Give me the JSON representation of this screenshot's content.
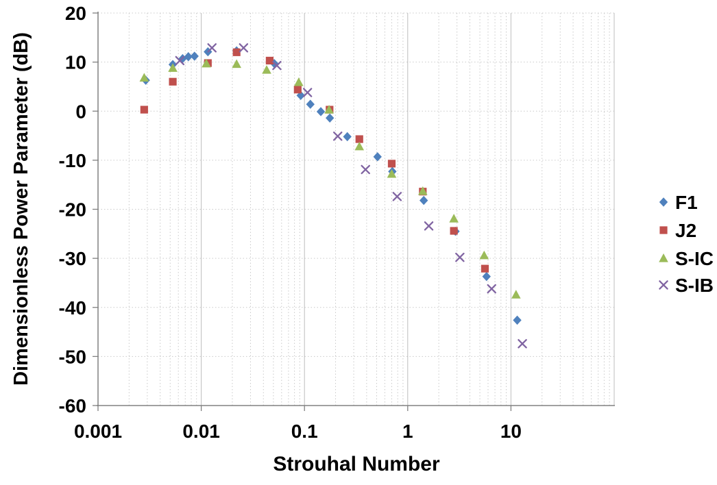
{
  "chart_data": {
    "type": "scatter",
    "title": "",
    "xlabel": "Strouhal Number",
    "ylabel": "Dimensionless Power Parameter (dB)",
    "x_scale": "log",
    "xlim": [
      0.001,
      100
    ],
    "ylim": [
      -60,
      20
    ],
    "x_major_ticks": [
      0.001,
      0.01,
      0.1,
      1,
      10
    ],
    "x_tick_labels": [
      "0.001",
      "0.01",
      "0.1",
      "1",
      "10"
    ],
    "y_major_ticks": [
      20,
      10,
      0,
      -10,
      -20,
      -30,
      -40,
      -50,
      -60
    ],
    "y_tick_labels": [
      "20",
      "10",
      "0",
      "-10",
      "-20",
      "-30",
      "-40",
      "-50",
      "-60"
    ],
    "grid": {
      "x_minor": "dotted",
      "x_major": "solid",
      "y_major": "dotted"
    },
    "legend_position": "right-outside",
    "series": [
      {
        "name": "F1",
        "marker": "diamond",
        "color": "#4F81BD",
        "points": [
          [
            0.0029,
            6.3
          ],
          [
            0.0053,
            9.5
          ],
          [
            0.0066,
            10.7
          ],
          [
            0.0075,
            11.1
          ],
          [
            0.0086,
            11.2
          ],
          [
            0.0116,
            12.1
          ],
          [
            0.022,
            12.3
          ],
          [
            0.051,
            9.7
          ],
          [
            0.092,
            3.2
          ],
          [
            0.114,
            1.4
          ],
          [
            0.144,
            -0.1
          ],
          [
            0.176,
            -1.4
          ],
          [
            0.26,
            -5.2
          ],
          [
            0.51,
            -9.3
          ],
          [
            0.71,
            -12.3
          ],
          [
            1.43,
            -18.2
          ],
          [
            2.9,
            -24.5
          ],
          [
            5.8,
            -33.7
          ],
          [
            11.5,
            -42.6
          ]
        ]
      },
      {
        "name": "J2",
        "marker": "square",
        "color": "#C0504D",
        "points": [
          [
            0.0028,
            0.3
          ],
          [
            0.0053,
            6.0
          ],
          [
            0.0116,
            9.8
          ],
          [
            0.022,
            12.0
          ],
          [
            0.046,
            10.3
          ],
          [
            0.086,
            4.4
          ],
          [
            0.175,
            0.3
          ],
          [
            0.34,
            -5.7
          ],
          [
            0.7,
            -10.7
          ],
          [
            1.4,
            -16.4
          ],
          [
            2.8,
            -24.4
          ],
          [
            5.6,
            -32.1
          ]
        ]
      },
      {
        "name": "S-IC",
        "marker": "triangle",
        "color": "#9BBB59",
        "points": [
          [
            0.0028,
            6.8
          ],
          [
            0.0053,
            8.8
          ],
          [
            0.0112,
            9.7
          ],
          [
            0.022,
            9.6
          ],
          [
            0.043,
            8.4
          ],
          [
            0.088,
            5.9
          ],
          [
            0.173,
            0.3
          ],
          [
            0.34,
            -7.2
          ],
          [
            0.7,
            -12.8
          ],
          [
            1.4,
            -16.3
          ],
          [
            2.8,
            -21.9
          ],
          [
            5.5,
            -29.4
          ],
          [
            11.2,
            -37.4
          ]
        ]
      },
      {
        "name": "S-IB",
        "marker": "x-cross",
        "color": "#8064A2",
        "points": [
          [
            0.0062,
            10.3
          ],
          [
            0.0127,
            12.9
          ],
          [
            0.0257,
            12.9
          ],
          [
            0.054,
            9.3
          ],
          [
            0.107,
            3.8
          ],
          [
            0.21,
            -5.1
          ],
          [
            0.39,
            -11.9
          ],
          [
            0.79,
            -17.4
          ],
          [
            1.6,
            -23.4
          ],
          [
            3.2,
            -29.8
          ],
          [
            6.5,
            -36.2
          ],
          [
            12.9,
            -47.4
          ]
        ]
      }
    ]
  },
  "colors": {
    "background": "#FFFFFF",
    "axis": "#808080",
    "grid_minor": "#C9C9C9",
    "grid_major": "#BDBDBD",
    "text": "#000000",
    "series_f1": "#4F81BD",
    "series_j2": "#C0504D",
    "series_s_ic": "#9BBB59",
    "series_s_ib": "#8064A2"
  }
}
